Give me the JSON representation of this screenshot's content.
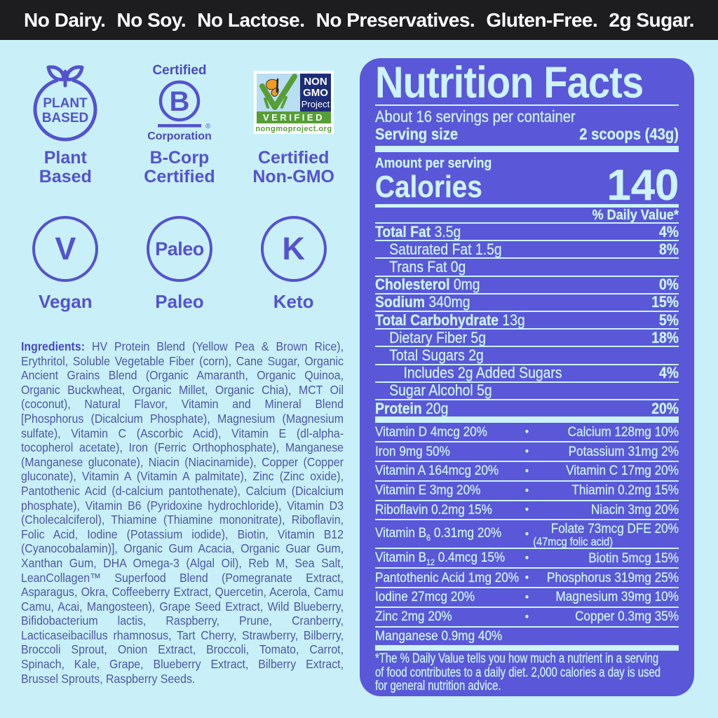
{
  "top_bar": {
    "items": [
      "No Dairy.",
      "No Soy.",
      "No Lactose.",
      "No Preservatives.",
      "Gluten-Free.",
      "2g Sugar."
    ]
  },
  "badges": {
    "plant_based": {
      "seal_line1": "PLANT",
      "seal_line2": "BASED",
      "label": "Plant\nBased"
    },
    "b_corp": {
      "certified": "Certified",
      "letter": "B",
      "registered": "®",
      "corporation": "Corporation",
      "label": "B-Corp\nCertified"
    },
    "non_gmo": {
      "line1": "NON",
      "line2": "GMO",
      "line3": "Project",
      "verified": "VERIFIED",
      "url": "nongmoproject.org",
      "label": "Certified\nNon-GMO"
    }
  },
  "diet_badges": [
    {
      "circle": "V",
      "style": "big",
      "label": "Vegan"
    },
    {
      "circle": "Paleo",
      "style": "word",
      "label": "Paleo"
    },
    {
      "circle": "K",
      "style": "big",
      "label": "Keto"
    }
  ],
  "ingredients": {
    "label": "Ingredients:",
    "text": "HV Protein Blend (Yellow Pea & Brown Rice), Erythritol, Soluble Vegetable Fiber (corn), Cane Sugar, Organic Ancient Grains Blend (Organic Amaranth, Organic Quinoa, Organic Buckwheat, Organic Millet, Organic Chia), MCT Oil (coconut), Natural Flavor, Vitamin and Mineral Blend [Phosphorus (Dicalcium Phosphate), Magnesium (Magnesium sulfate), Vitamin C (Ascorbic Acid), Vitamin E (dl-alpha-tocopherol acetate), Iron (Ferric Orthophosphate), Manganese (Manganese gluconate), Niacin (Niacinamide), Copper (Copper gluconate), Vitamin A (Vitamin A palmitate), Zinc (Zinc oxide), Pantothenic Acid (d-calcium pantothenate), Calcium (Dicalcium phosphate), Vitamin B6 (Pyridoxine hydrochloride), Vitamin D3 (Cholecalciferol), Thiamine (Thiamine mononitrate), Riboflavin, Folic Acid, Iodine (Potassium iodide), Biotin, Vitamin B12 (Cyanocobalamin)], Organic Gum Acacia, Organic Guar Gum, Xanthan Gum, DHA Omega-3 (Algal Oil), Reb M, Sea Salt, LeanCollagen™ Superfood Blend (Pomegranate Extract, Asparagus, Okra, Coffeeberry Extract, Quercetin, Acerola, Camu Camu, Acai, Mangosteen), Grape Seed Extract, Wild Blueberry, Bifidobacterium lactis, Raspberry, Prune, Cranberry, Lacticaseibacillus rhamnosus, Tart Cherry, Strawberry, Bilberry, Broccoli Sprout, Onion Extract, Broccoli, Tomato, Carrot, Spinach, Kale, Grape, Blueberry Extract, Bilberry Extract, Brussel Sprouts, Raspberry Seeds."
  },
  "nutrition": {
    "title": "Nutrition Facts",
    "servings_per_container": "About 16 servings per container",
    "serving_size_label": "Serving size",
    "serving_size_value": "2 scoops (43g)",
    "amount_label": "Amount per serving",
    "calories_label": "Calories",
    "calories_value": "140",
    "dv_header": "% Daily Value*",
    "rows": [
      {
        "bold": "Total Fat",
        "rest": " 3.5g",
        "dv": "4%",
        "indent": 0
      },
      {
        "bold": "",
        "rest": "Saturated Fat 1.5g",
        "dv": "8%",
        "indent": 1
      },
      {
        "bold": "",
        "rest": "Trans Fat 0g",
        "dv": "",
        "indent": 1
      },
      {
        "bold": "Cholesterol",
        "rest": " 0mg",
        "dv": "0%",
        "indent": 0
      },
      {
        "bold": "Sodium",
        "rest": " 340mg",
        "dv": "15%",
        "indent": 0
      },
      {
        "bold": "Total Carbohydrate",
        "rest": " 13g",
        "dv": "5%",
        "indent": 0
      },
      {
        "bold": "",
        "rest": "Dietary Fiber 5g",
        "dv": "18%",
        "indent": 1
      },
      {
        "bold": "",
        "rest": "Total Sugars 2g",
        "dv": "",
        "indent": 1
      },
      {
        "bold": "",
        "rest": "Includes 2g Added Sugars",
        "dv": "4%",
        "indent": 2
      },
      {
        "bold": "",
        "rest": "Sugar Alcohol 5g",
        "dv": "",
        "indent": 1
      },
      {
        "bold": "Protein",
        "rest": " 20g",
        "dv": "20%",
        "indent": 0
      }
    ],
    "micros": [
      {
        "left": "Vitamin D 4mcg 20%",
        "right": "Calcium 128mg 10%"
      },
      {
        "left": "Iron 9mg 50%",
        "right": "Potassium 31mg 2%"
      },
      {
        "left": "Vitamin A 164mcg 20%",
        "right": "Vitamin C 17mg 20%"
      },
      {
        "left": "Vitamin E 3mg 20%",
        "right": "Thiamin 0.2mg 15%"
      },
      {
        "left": "Riboflavin 0.2mg 15%",
        "right": "Niacin 3mg 20%"
      },
      {
        "left": "Vitamin B{6} 0.31mg 20%",
        "right": "Folate 73mcg DFE 20%\n(47mcg folic acid)"
      },
      {
        "left": "Vitamin B{12} 0.4mcg 15%",
        "right": "Biotin 5mcg 15%"
      },
      {
        "left": "Pantothenic Acid 1mg 20%",
        "right": "Phosphorus 319mg 25%"
      },
      {
        "left": "Iodine 27mcg 20%",
        "right": "Magnesium 39mg 10%"
      },
      {
        "left": "Zinc 2mg 20%",
        "right": "Copper 0.3mg 35%"
      },
      {
        "left": "Manganese 0.9mg 40%",
        "right": null
      }
    ],
    "footnote": "*The % Daily Value tells you how much a nutrient in a serving\nof food contributes to a daily diet. 2,000 calories a day is used\nfor general nutrition advice."
  },
  "colors": {
    "top_bar_bg": "#1d1d1f",
    "page_bg": "#c9f0f8",
    "panel_bg": "#5a57d8",
    "panel_text": "#cdf3fa",
    "badge_purple": "#5552cf",
    "ingredients_text": "#4c56a8",
    "non_gmo_navy": "#1e2d78",
    "non_gmo_green": "#579e36",
    "non_gmo_sky": "#b9ddf1",
    "butterfly_orange": "#f39c1f"
  }
}
